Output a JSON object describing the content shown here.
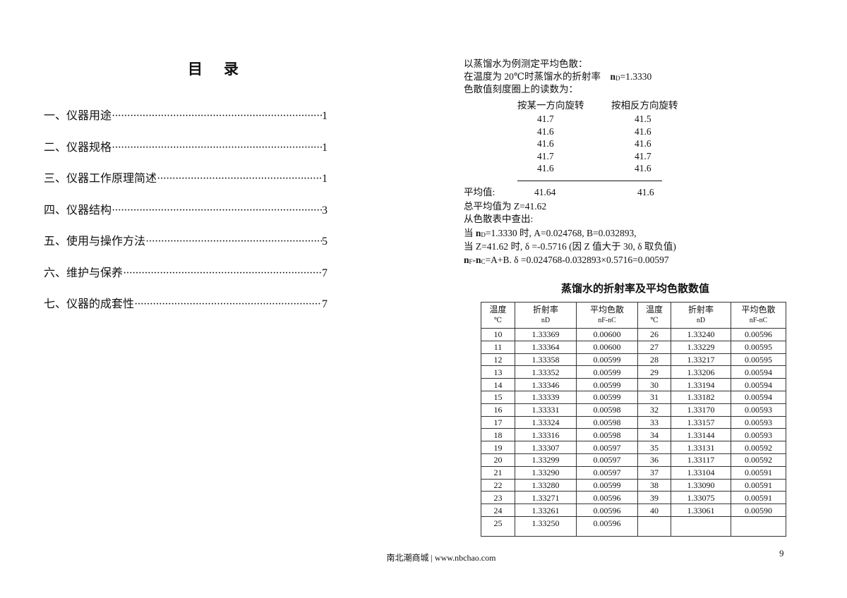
{
  "toc": {
    "title": "目录",
    "items": [
      {
        "label": "一、仪器用途",
        "page": "1"
      },
      {
        "label": "二、仪器规格",
        "page": "1"
      },
      {
        "label": "三、仪器工作原理简述",
        "page": "1"
      },
      {
        "label": "四、仪器结构",
        "page": "3"
      },
      {
        "label": "五、使用与操作方法",
        "page": "5"
      },
      {
        "label": "六、维护与保养",
        "page": "7"
      },
      {
        "label": "七、仪器的成套性",
        "page": "7"
      }
    ]
  },
  "example": {
    "line1": "以蒸馏水为例测定平均色散：",
    "line2a": "在温度为 20℃时蒸馏水的折射率",
    "line2b": "=1.3330",
    "line3": "色散值刻度圈上的读数为：",
    "col1_header": "按某一方向旋转",
    "col2_header": "按相反方向旋转",
    "readings": [
      [
        "41.7",
        "41.5"
      ],
      [
        "41.6",
        "41.6"
      ],
      [
        "41.6",
        "41.6"
      ],
      [
        "41.7",
        "41.7"
      ],
      [
        "41.6",
        "41.6"
      ]
    ],
    "avg_label": "平均值:",
    "avg1": "41.64",
    "avg2": "41.6",
    "total": "总平均值为  Z=41.62",
    "lookup": "从色散表中查出:",
    "line_a1": "当",
    "line_a2": "=1.3330 时, A=0.024768,    B=0.032893,",
    "line_b": "当 Z=41.62 时, δ =-0.5716 (因 Z 值大于 30,  δ 取负值)",
    "line_c": "=A+B. δ =0.024768-0.032893×0.5716=0.00597"
  },
  "table": {
    "title": "蒸馏水的折射率及平均色散数值",
    "headers": [
      "温度",
      "折射率",
      "平均色散",
      "温度",
      "折射率",
      "平均色散"
    ],
    "units": [
      "℃",
      "nD",
      "nF-nC",
      "℃",
      "nD",
      "nF-nC"
    ],
    "rows": [
      [
        "10",
        "1.33369",
        "0.00600",
        "26",
        "1.33240",
        "0.00596"
      ],
      [
        "11",
        "1.33364",
        "0.00600",
        "27",
        "1.33229",
        "0.00595"
      ],
      [
        "12",
        "1.33358",
        "0.00599",
        "28",
        "1.33217",
        "0.00595"
      ],
      [
        "13",
        "1.33352",
        "0.00599",
        "29",
        "1.33206",
        "0.00594"
      ],
      [
        "14",
        "1.33346",
        "0.00599",
        "30",
        "1.33194",
        "0.00594"
      ],
      [
        "15",
        "1.33339",
        "0.00599",
        "31",
        "1.33182",
        "0.00594"
      ],
      [
        "16",
        "1.33331",
        "0.00598",
        "32",
        "1.33170",
        "0.00593"
      ],
      [
        "17",
        "1.33324",
        "0.00598",
        "33",
        "1.33157",
        "0.00593"
      ],
      [
        "18",
        "1.33316",
        "0.00598",
        "34",
        "1.33144",
        "0.00593"
      ],
      [
        "19",
        "1.33307",
        "0.00597",
        "35",
        "1.33131",
        "0.00592"
      ],
      [
        "20",
        "1.33299",
        "0.00597",
        "36",
        "1.33117",
        "0.00592"
      ],
      [
        "21",
        "1.33290",
        "0.00597",
        "37",
        "1.33104",
        "0.00591"
      ],
      [
        "22",
        "1.33280",
        "0.00599",
        "38",
        "1.33090",
        "0.00591"
      ],
      [
        "23",
        "1.33271",
        "0.00596",
        "39",
        "1.33075",
        "0.00591"
      ],
      [
        "24",
        "1.33261",
        "0.00596",
        "40",
        "1.33061",
        "0.00590"
      ],
      [
        "25",
        "1.33250",
        "0.00596",
        "",
        "",
        ""
      ]
    ]
  },
  "footer": "南北潮商城 | www.nbchao.com",
  "page_number": "9"
}
